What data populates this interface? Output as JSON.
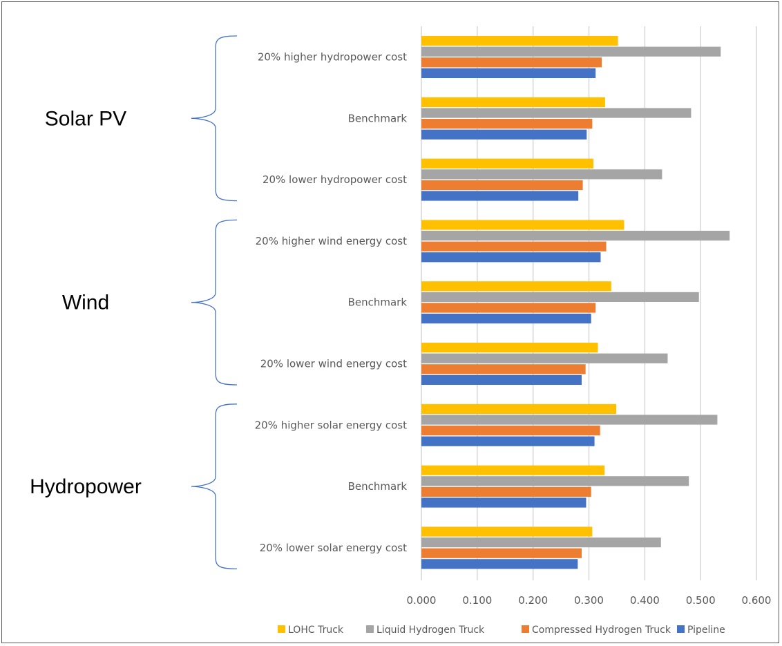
{
  "colors": {
    "lohc": "#FFC000",
    "liquid": "#A5A5A5",
    "compressed": "#ED7D31",
    "pipeline": "#4472C4",
    "gridline": "#D9D9D9",
    "brace": "#4472C4"
  },
  "groups": [
    {
      "label": "Solar PV",
      "first": 0,
      "last": 2
    },
    {
      "label": "Wind",
      "first": 3,
      "last": 5
    },
    {
      "label": "Hydropower",
      "first": 6,
      "last": 8
    }
  ],
  "chart_data": {
    "type": "bar",
    "orientation": "horizontal",
    "categories": [
      "20% higher hydropower cost",
      "Benchmark",
      "20% lower hydropower cost",
      "20% higher wind energy cost",
      "Benchmark",
      "20% lower wind energy cost",
      "20% higher solar energy cost",
      "Benchmark",
      "20% lower solar energy cost"
    ],
    "series": [
      {
        "name": "LOHC Truck",
        "color": "#FFC000",
        "values": [
          0.352,
          0.329,
          0.308,
          0.363,
          0.34,
          0.316,
          0.349,
          0.328,
          0.306
        ]
      },
      {
        "name": "Liquid Hydrogen Truck",
        "color": "#A5A5A5",
        "values": [
          0.536,
          0.483,
          0.431,
          0.552,
          0.497,
          0.441,
          0.53,
          0.479,
          0.429
        ]
      },
      {
        "name": "Compressed Hydrogen Truck",
        "color": "#ED7D31",
        "values": [
          0.323,
          0.306,
          0.289,
          0.331,
          0.312,
          0.294,
          0.32,
          0.304,
          0.287
        ]
      },
      {
        "name": "Pipeline",
        "color": "#4472C4",
        "values": [
          0.312,
          0.296,
          0.281,
          0.321,
          0.304,
          0.287,
          0.31,
          0.295,
          0.28
        ]
      }
    ],
    "xlim": [
      0,
      0.6
    ],
    "xticks": [
      0.0,
      0.1,
      0.2,
      0.3,
      0.4,
      0.5,
      0.6
    ],
    "xtick_labels": [
      "0.000",
      "0.100",
      "0.200",
      "0.300",
      "0.400",
      "0.500",
      "0.600"
    ],
    "grid": true,
    "legend": [
      "LOHC Truck",
      "Liquid Hydrogen Truck",
      "Compressed Hydrogen Truck",
      "Pipeline"
    ],
    "legend_position": "bottom",
    "title": "",
    "xlabel": "",
    "ylabel": ""
  }
}
